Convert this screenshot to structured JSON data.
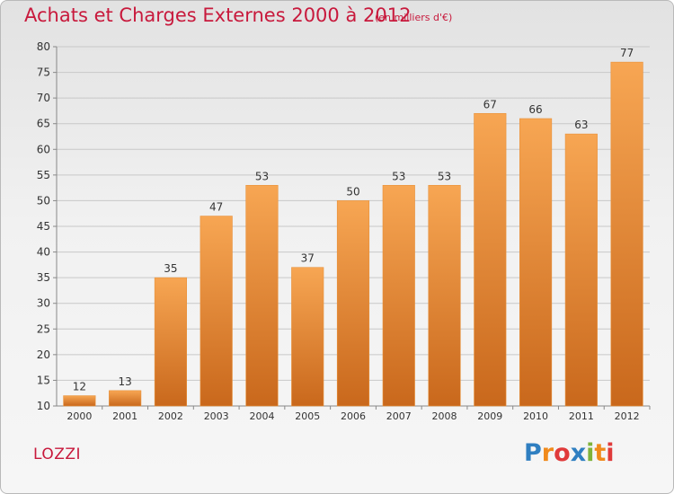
{
  "header": {
    "title": "Achats et Charges Externes 2000 à 2012",
    "unit": "(en milliers d'€)"
  },
  "commune": "LOZZI",
  "logo": {
    "letters": [
      "P",
      "r",
      "o",
      "x",
      "i",
      "t",
      "i"
    ],
    "colors": [
      "#2f7fc1",
      "#f08a1c",
      "#e03a3a",
      "#2f7fc1",
      "#7fb33a",
      "#f08a1c",
      "#e03a3a"
    ]
  },
  "colors": {
    "bar_top": "#f7a653",
    "bar_bottom": "#c9681c",
    "bar_edge": "#e8913a",
    "title": "#c8193c"
  },
  "chart_data": {
    "type": "bar",
    "categories": [
      "2000",
      "2001",
      "2002",
      "2003",
      "2004",
      "2005",
      "2006",
      "2007",
      "2008",
      "2009",
      "2010",
      "2011",
      "2012"
    ],
    "values": [
      12,
      13,
      35,
      47,
      53,
      37,
      50,
      53,
      53,
      67,
      66,
      63,
      77
    ],
    "ylim": [
      10,
      80
    ],
    "yticks": [
      10,
      15,
      20,
      25,
      30,
      35,
      40,
      45,
      50,
      55,
      60,
      65,
      70,
      75,
      80
    ],
    "grid": true
  }
}
